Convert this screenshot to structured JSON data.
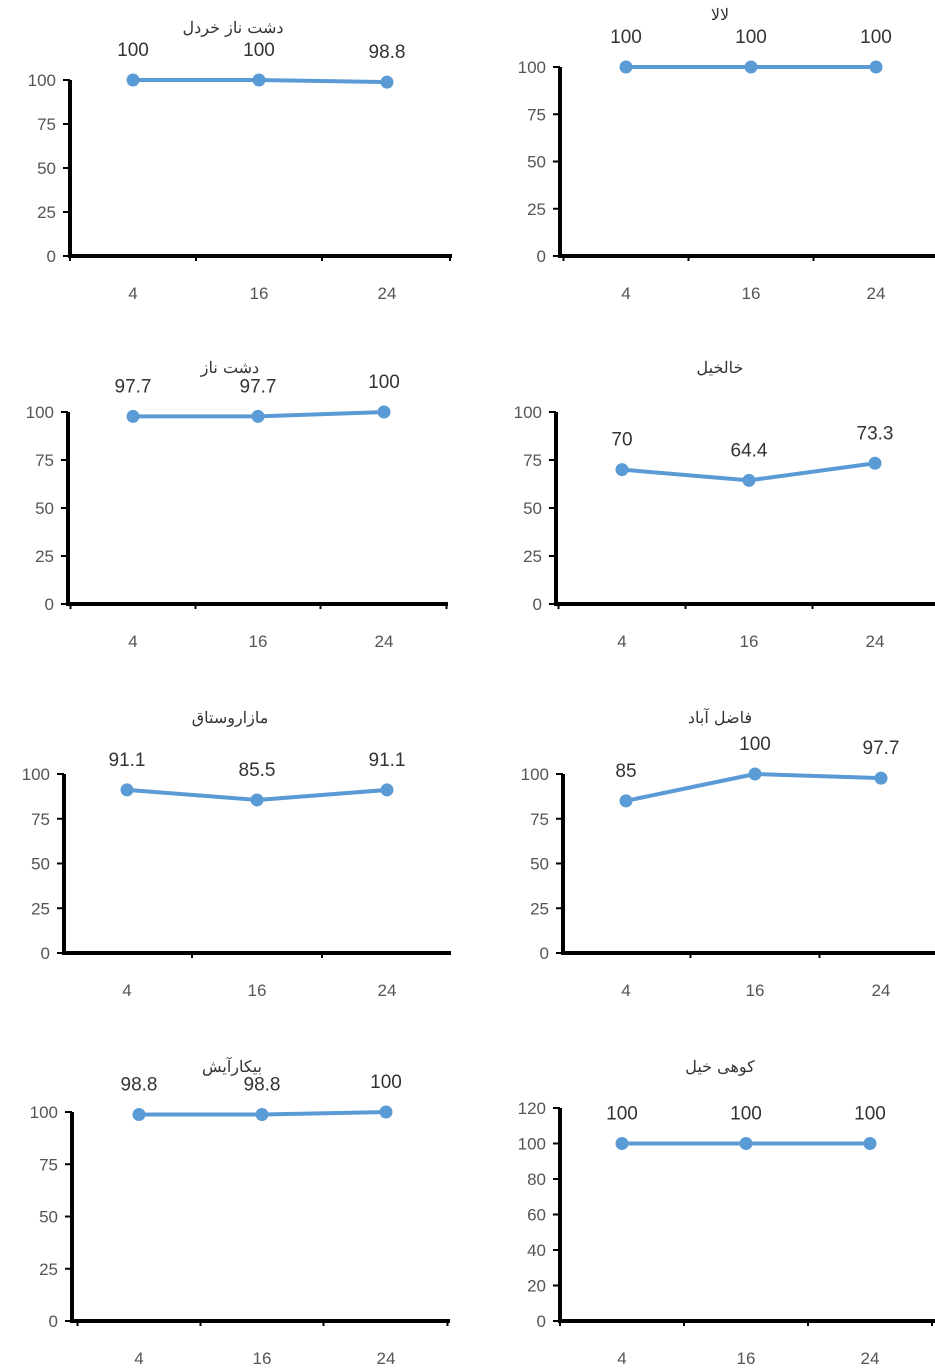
{
  "colors": {
    "line": "#5B9BD5",
    "axis": "#000000",
    "text": "#333333"
  },
  "chart_data": [
    {
      "type": "line",
      "title": "دشت ناز خردل",
      "categories": [
        "4",
        "16",
        "24"
      ],
      "values": [
        100,
        100,
        98.8
      ],
      "data_labels": [
        "100",
        "100",
        "98.8"
      ],
      "yticks": [
        "0",
        "25",
        "50",
        "75",
        "100"
      ],
      "ylim": [
        0,
        100
      ],
      "grid": false,
      "legend": "none"
    },
    {
      "type": "line",
      "title": "لالا",
      "categories": [
        "4",
        "16",
        "24"
      ],
      "values": [
        100,
        100,
        100
      ],
      "data_labels": [
        "100",
        "100",
        "100"
      ],
      "yticks": [
        "0",
        "25",
        "50",
        "75",
        "100"
      ],
      "ylim": [
        0,
        100
      ],
      "grid": false,
      "legend": "none"
    },
    {
      "type": "line",
      "title": "دشت ناز",
      "categories": [
        "4",
        "16",
        "24"
      ],
      "values": [
        97.7,
        97.7,
        100
      ],
      "data_labels": [
        "97.7",
        "97.7",
        "100"
      ],
      "yticks": [
        "0",
        "25",
        "50",
        "75",
        "100"
      ],
      "ylim": [
        0,
        100
      ],
      "grid": false,
      "legend": "none"
    },
    {
      "type": "line",
      "title": "خالخیل",
      "categories": [
        "4",
        "16",
        "24"
      ],
      "values": [
        70,
        64.4,
        73.3
      ],
      "data_labels": [
        "70",
        "64.4",
        "73.3"
      ],
      "yticks": [
        "0",
        "25",
        "50",
        "75",
        "100"
      ],
      "ylim": [
        0,
        100
      ],
      "grid": false,
      "legend": "none"
    },
    {
      "type": "line",
      "title": "مازاروستاق",
      "categories": [
        "4",
        "16",
        "24"
      ],
      "values": [
        91.1,
        85.5,
        91.1
      ],
      "data_labels": [
        "91.1",
        "85.5",
        "91.1"
      ],
      "yticks": [
        "0",
        "25",
        "50",
        "75",
        "100"
      ],
      "ylim": [
        0,
        100
      ],
      "grid": false,
      "legend": "none"
    },
    {
      "type": "line",
      "title": "فاضل آباد",
      "categories": [
        "4",
        "16",
        "24"
      ],
      "values": [
        85,
        100,
        97.7
      ],
      "data_labels": [
        "85",
        "100",
        "97.7"
      ],
      "yticks": [
        "0",
        "25",
        "50",
        "75",
        "100"
      ],
      "ylim": [
        0,
        100
      ],
      "grid": false,
      "legend": "none"
    },
    {
      "type": "line",
      "title": "بیکارآیش",
      "categories": [
        "4",
        "16",
        "24"
      ],
      "values": [
        98.8,
        98.8,
        100
      ],
      "data_labels": [
        "98.8",
        "98.8",
        "100"
      ],
      "yticks": [
        "0",
        "25",
        "50",
        "75",
        "100"
      ],
      "ylim": [
        0,
        100
      ],
      "grid": false,
      "legend": "none"
    },
    {
      "type": "line",
      "title": "کوهی خیل",
      "categories": [
        "4",
        "16",
        "24"
      ],
      "values": [
        100,
        100,
        100
      ],
      "data_labels": [
        "100",
        "100",
        "100"
      ],
      "yticks": [
        "0",
        "20",
        "40",
        "60",
        "80",
        "100",
        "120"
      ],
      "ylim": [
        0,
        120
      ],
      "grid": false,
      "legend": "none"
    }
  ]
}
